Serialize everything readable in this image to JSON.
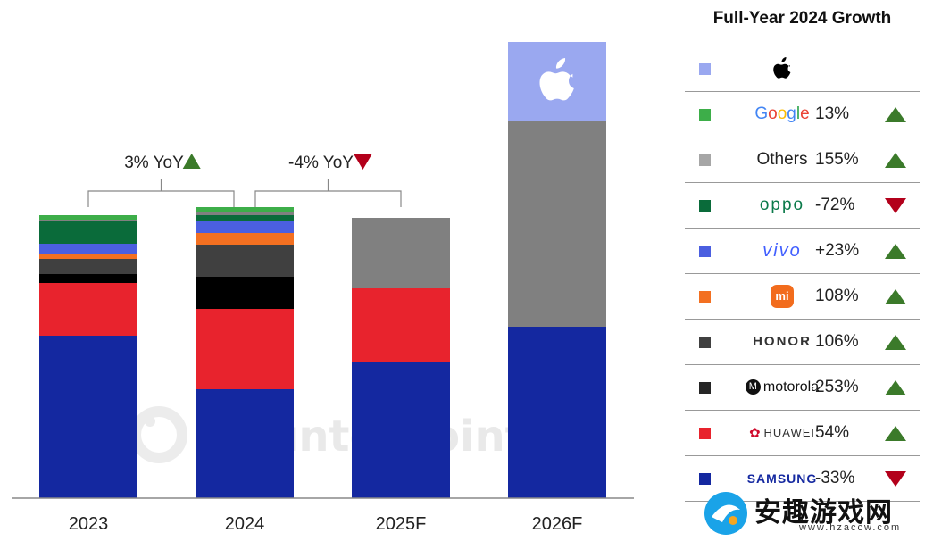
{
  "chart_data": {
    "type": "bar",
    "stacked": true,
    "categories": [
      "2023",
      "2024",
      "2025F",
      "2026F"
    ],
    "series": [
      {
        "name": "SAMSUNG",
        "color": "#1428a0",
        "values": [
          182,
          122,
          152,
          192
        ]
      },
      {
        "name": "HUAWEI",
        "color": "#e8232d",
        "values": [
          59,
          90,
          83,
          0
        ]
      },
      {
        "name": "motorola",
        "color": "#000000",
        "values": [
          10,
          36,
          0,
          0
        ]
      },
      {
        "name": "HONOR",
        "color": "#404040",
        "values": [
          17,
          36,
          0,
          0
        ]
      },
      {
        "name": "mi",
        "color": "#f37021",
        "values": [
          6,
          13,
          0,
          0
        ]
      },
      {
        "name": "vivo",
        "color": "#4b5fe0",
        "values": [
          11,
          13,
          0,
          0
        ]
      },
      {
        "name": "oppo",
        "color": "#0a6b3a",
        "values": [
          25,
          7,
          0,
          0
        ]
      },
      {
        "name": "Others",
        "color": "#808080",
        "values": [
          2,
          4,
          79,
          231
        ]
      },
      {
        "name": "Google",
        "color": "#3dae49",
        "values": [
          5,
          5,
          0,
          0
        ]
      },
      {
        "name": "Apple",
        "color": "#9aa8f0",
        "values": [
          0,
          0,
          0,
          88
        ]
      }
    ],
    "annotations": [
      {
        "text": "3% YoY",
        "from": "2023",
        "to": "2024",
        "direction": "up"
      },
      {
        "text": "-4% YoY",
        "from": "2024",
        "to": "2025F",
        "direction": "down"
      }
    ],
    "grid": false,
    "legend_position": "right"
  },
  "legend": {
    "title": "Full-Year 2024 Growth",
    "rows": [
      {
        "brand": "Apple",
        "icon": "apple-icon",
        "color": "#9aa8f0",
        "growth": "",
        "direction": ""
      },
      {
        "brand": "Google",
        "color": "#3dae49",
        "growth": "13%",
        "direction": "up"
      },
      {
        "brand": "Others",
        "color": "#a6a6a6",
        "growth": "155%",
        "direction": "up"
      },
      {
        "brand": "oppo",
        "color": "#0a6b3a",
        "growth": "-72%",
        "direction": "down"
      },
      {
        "brand": "vivo",
        "color": "#4b5fe0",
        "growth": "+23%",
        "direction": "up"
      },
      {
        "brand": "mi",
        "color": "#f37021",
        "growth": "108%",
        "direction": "up"
      },
      {
        "brand": "HONOR",
        "color": "#404040",
        "growth": "106%",
        "direction": "up"
      },
      {
        "brand": "motorola",
        "color": "#262626",
        "growth": "253%",
        "direction": "up"
      },
      {
        "brand": "HUAWEI",
        "color": "#e8232d",
        "growth": "54%",
        "direction": "up"
      },
      {
        "brand": "SAMSUNG",
        "color": "#1428a0",
        "growth": "-33%",
        "direction": "down"
      }
    ]
  },
  "watermark": "Counterpoint",
  "site_badge": {
    "name": "安趣游戏网",
    "url": "www.hzaccw.com"
  }
}
